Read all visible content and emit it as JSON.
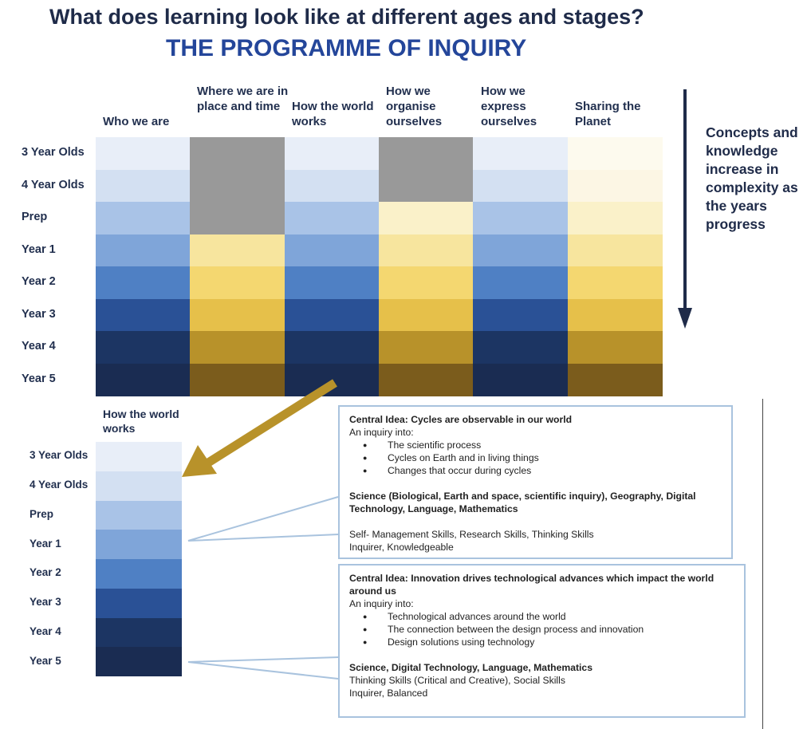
{
  "title": "What does learning look like at different ages and stages?",
  "subtitle": "THE PROGRAMME OF INQUIRY",
  "columns": [
    "Who we are",
    "Where we are in place and time",
    "How the world works",
    "How we organise ourselves",
    "How we express ourselves",
    "Sharing the Planet"
  ],
  "rows": [
    "3 Year Olds",
    "4 Year Olds",
    "Prep",
    "Year 1",
    "Year 2",
    "Year 3",
    "Year 4",
    "Year 5"
  ],
  "palette": {
    "blue": [
      "#e8eef8",
      "#d3e0f2",
      "#a9c3e7",
      "#7fa5d9",
      "#4f80c4",
      "#2a5196",
      "#1c3563",
      "#1a2c52"
    ],
    "gold": [
      "#fdfaee",
      "#fcf6e4",
      "#faf1c9",
      "#f7e59e",
      "#f4d770",
      "#e6c04a",
      "#b8922a",
      "#7b5c1c"
    ],
    "gray": "#999999",
    "arrow_navy": "#1f2b49",
    "arrow_gold": "#b8922a",
    "box_border": "#a9c3de"
  },
  "grid_cells": [
    [
      "blue",
      "blue",
      "blue",
      "blue",
      "blue",
      "blue",
      "blue",
      "blue"
    ],
    [
      "gray",
      "gray",
      "gray",
      "gold",
      "gold",
      "gold",
      "gold",
      "gold"
    ],
    [
      "blue",
      "blue",
      "blue",
      "blue",
      "blue",
      "blue",
      "blue",
      "blue"
    ],
    [
      "gray",
      "gray",
      "gold",
      "gold",
      "gold",
      "gold",
      "gold",
      "gold"
    ],
    [
      "blue",
      "blue",
      "blue",
      "blue",
      "blue",
      "blue",
      "blue",
      "blue"
    ],
    [
      "gold",
      "gold",
      "gold",
      "gold",
      "gold",
      "gold",
      "gold",
      "gold"
    ]
  ],
  "complexity_note": "Concepts and knowledge increase in complexity as the years progress",
  "detail_column": "How the world works",
  "box1": {
    "central_idea": "Central Idea: Cycles are observable in our world",
    "inquiry_intro": "An inquiry into:",
    "bullets": [
      "The scientific process",
      "Cycles on Earth and in living things",
      "Changes that occur during cycles"
    ],
    "subjects": "Science (Biological, Earth and space, scientific inquiry), Geography, Digital Technology, Language, Mathematics",
    "skills": "Self- Management Skills, Research Skills, Thinking Skills",
    "attributes": "Inquirer, Knowledgeable"
  },
  "box2": {
    "central_idea": "Central Idea: Innovation drives technological advances which impact the world around us",
    "inquiry_intro": "An inquiry into:",
    "bullets": [
      "Technological  advances around the world",
      "The connection between the design process and innovation",
      "Design solutions using technology"
    ],
    "subjects": "Science, Digital Technology, Language, Mathematics",
    "skills": "Thinking Skills (Critical and Creative), Social Skills",
    "attributes": "Inquirer, Balanced"
  }
}
